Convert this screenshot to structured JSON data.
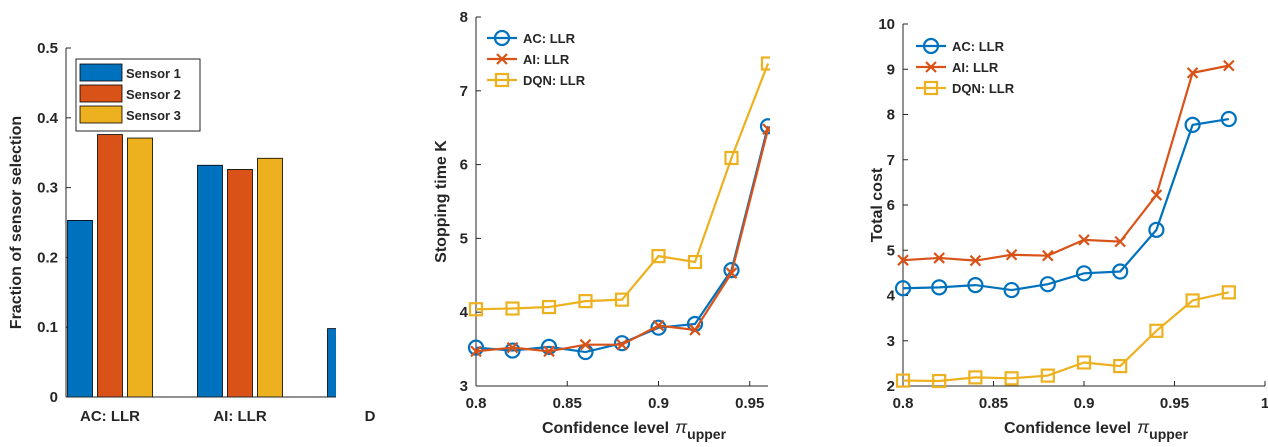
{
  "colors": {
    "blue": "#0072BD",
    "orange": "#D95319",
    "yellow": "#EDB120",
    "axis": "#262626"
  },
  "chart_data": [
    {
      "type": "bar",
      "ylabel": "Fraction of sensor selection",
      "ylim": [
        0,
        0.5
      ],
      "yticks": [
        "0",
        "0.1",
        "0.2",
        "0.3",
        "0.4",
        "0.5"
      ],
      "categories": [
        "AC: LLR",
        "AI: LLR",
        "D"
      ],
      "series": [
        {
          "name": "Sensor 1",
          "color": "blue",
          "values": [
            0.253,
            0.332,
            0.098
          ]
        },
        {
          "name": "Sensor 2",
          "color": "orange",
          "values": [
            0.376,
            0.326,
            null
          ]
        },
        {
          "name": "Sensor 3",
          "color": "yellow",
          "values": [
            0.371,
            0.342,
            null
          ]
        }
      ],
      "legend": "top-left"
    },
    {
      "type": "line",
      "xlabel": "Confidence level",
      "xlabel_symbol": "π",
      "xlabel_sub": "upper",
      "ylabel": "Stopping time  K",
      "xlim": [
        0.8,
        0.96
      ],
      "ylim": [
        3,
        8
      ],
      "xticks": [
        "0.8",
        "0.85",
        "0.9",
        "0.95"
      ],
      "yticks": [
        "3",
        "4",
        "5",
        "6",
        "7",
        "8"
      ],
      "x": [
        0.8,
        0.82,
        0.84,
        0.86,
        0.88,
        0.9,
        0.92,
        0.94,
        0.96
      ],
      "series": [
        {
          "name": "AC: LLR",
          "color": "blue",
          "marker": "circle",
          "values": [
            3.52,
            3.48,
            3.53,
            3.46,
            3.58,
            3.79,
            3.84,
            4.57,
            6.52
          ]
        },
        {
          "name": "AI: LLR",
          "color": "orange",
          "marker": "x",
          "values": [
            3.47,
            3.52,
            3.47,
            3.56,
            3.56,
            3.82,
            3.76,
            4.53,
            6.48
          ]
        },
        {
          "name": "DQN: LLR",
          "color": "yellow",
          "marker": "square",
          "values": [
            4.04,
            4.05,
            4.07,
            4.15,
            4.17,
            4.76,
            4.68,
            6.09,
            7.37
          ]
        }
      ],
      "legend": "top-left"
    },
    {
      "type": "line",
      "xlabel": "Confidence level",
      "xlabel_symbol": "π",
      "xlabel_sub": "upper",
      "ylabel": "Total cost",
      "xlim": [
        0.8,
        1
      ],
      "ylim": [
        2,
        10
      ],
      "xticks": [
        "0.8",
        "0.85",
        "0.9",
        "0.95",
        "1"
      ],
      "yticks": [
        "2",
        "3",
        "4",
        "5",
        "6",
        "7",
        "8",
        "9",
        "10"
      ],
      "x": [
        0.8,
        0.82,
        0.84,
        0.86,
        0.88,
        0.9,
        0.92,
        0.94,
        0.96,
        0.98
      ],
      "series": [
        {
          "name": "AC: LLR",
          "color": "blue",
          "marker": "circle",
          "values": [
            4.16,
            4.18,
            4.23,
            4.12,
            4.25,
            4.49,
            4.53,
            5.45,
            7.77,
            7.9
          ]
        },
        {
          "name": "AI: LLR",
          "color": "orange",
          "marker": "x",
          "values": [
            4.78,
            4.83,
            4.77,
            4.9,
            4.88,
            5.23,
            5.19,
            6.22,
            8.92,
            9.08
          ]
        },
        {
          "name": "DQN: LLR",
          "color": "yellow",
          "marker": "square",
          "values": [
            2.12,
            2.11,
            2.19,
            2.17,
            2.23,
            2.52,
            2.44,
            3.22,
            3.89,
            4.07
          ]
        }
      ],
      "legend": "top-left"
    }
  ]
}
